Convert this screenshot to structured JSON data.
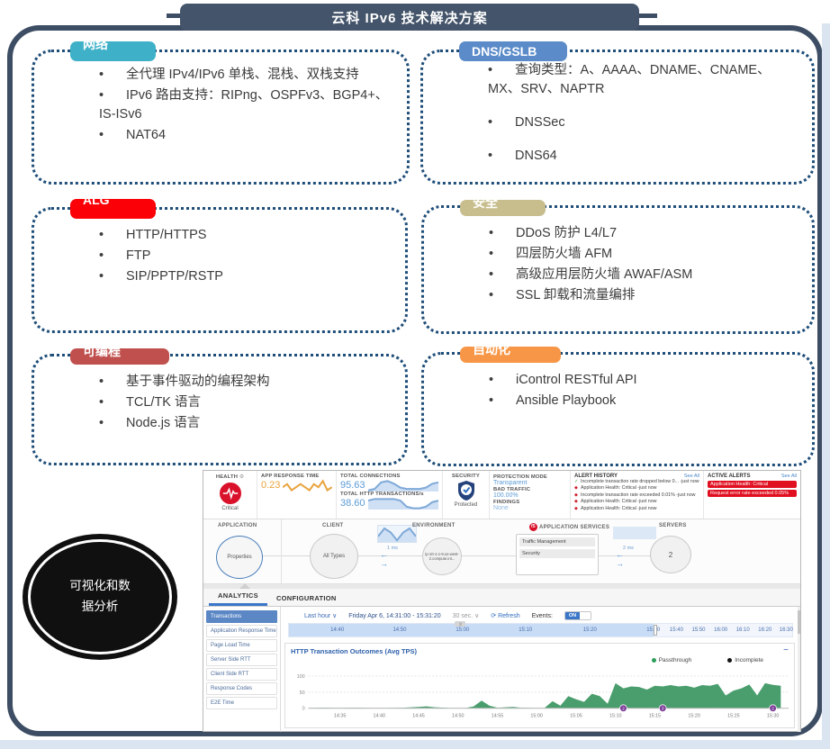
{
  "slide": {
    "title": "云科 IPv6 技术解决方案",
    "boxes": [
      {
        "label": "网络",
        "color": "#3eb1c8",
        "items": [
          "全代理 IPv4/IPv6 单栈、混栈、双栈支持",
          "IPv6 路由支持：RIPng、OSPFv3、BGP4+、IS-ISv6",
          "NAT64"
        ]
      },
      {
        "label": "DNS/GSLB",
        "color": "#5b8bc9",
        "items": [
          "查询类型：A、AAAA、DNAME、CNAME、MX、SRV、NAPTR",
          "DNSSec",
          "DNS64"
        ]
      },
      {
        "label": "ALG",
        "color": "#fb0007",
        "items": [
          "HTTP/HTTPS",
          "FTP",
          "SIP/PPTP/RSTP"
        ]
      },
      {
        "label": "安全",
        "color": "#c7bd8d",
        "items": [
          "DDoS 防护 L4/L7",
          "四层防火墙 AFM",
          "高级应用层防火墙 AWAF/ASM",
          "SSL 卸载和流量编排"
        ]
      },
      {
        "label": "可编程",
        "color": "#c0504d",
        "items": [
          "基于事件驱动的编程架构",
          "TCL/TK 语言",
          "Node.js 语言"
        ]
      },
      {
        "label": "自动化",
        "color": "#f79646",
        "items": [
          "iControl RESTful API",
          "Ansible Playbook"
        ]
      }
    ],
    "oval_label": "可视化和数据分析"
  },
  "dashboard": {
    "health": {
      "label": "HEALTH",
      "status": "Critical"
    },
    "app_response_time": {
      "label": "APP RESPONSE TIME",
      "value": "0.23"
    },
    "total_connections": {
      "label": "TOTAL CONNECTIONS",
      "value": "95.63"
    },
    "total_http": {
      "label": "TOTAL HTTP TRANSACTIONS/s",
      "value": "38.60"
    },
    "security": {
      "label": "SECURITY",
      "status": "Protected"
    },
    "protection": {
      "mode_label": "PROTECTION MODE",
      "mode": "Transparent",
      "bad_label": "BAD TRAFFIC",
      "bad": "100.00%",
      "findings_label": "FINDINGS",
      "findings": "None"
    },
    "alert_history": {
      "title": "ALERT HISTORY",
      "see_all": "See All",
      "items": [
        {
          "icon": "ok",
          "text": "Incomplete transaction rate dropped below 0... -just now"
        },
        {
          "icon": "crit",
          "text": "Application Health: Critical -just now"
        },
        {
          "icon": "crit",
          "text": "Incomplete transaction rate exceeded 0.01% -just now"
        },
        {
          "icon": "crit",
          "text": "Application Health: Critical -just now"
        },
        {
          "icon": "crit",
          "text": "Application Health: Critical -just now"
        }
      ]
    },
    "active_alerts": {
      "title": "ACTIVE ALERTS",
      "see_all": "See All",
      "items": [
        {
          "text": "Application Health: Critical"
        },
        {
          "text": "Request error rate exceeded 0.05%"
        }
      ]
    },
    "topology": {
      "application_label": "APPLICATION",
      "application_node": "Properties",
      "client_label": "CLIENT",
      "client_node": "All Types",
      "latency1": "1 ms",
      "environment_label": "ENVIRONMENT",
      "environment_node": "ip-10-1-1-9.us-west-2.compute.int...",
      "services_label": "APPLICATION SERVICES",
      "services_icon": "f5",
      "services": [
        "Traffic Management",
        "Security"
      ],
      "latency2": "2 ms",
      "servers_label": "SERVERS",
      "servers_node": "2"
    },
    "tabs": {
      "analytics": "ANALYTICS",
      "configuration": "CONFIGURATION"
    },
    "sidebar": [
      {
        "label": "Transactions",
        "active": true
      },
      {
        "label": "Application Response Time"
      },
      {
        "label": "Page Load Time"
      },
      {
        "label": "Server Side RTT"
      },
      {
        "label": "Client Side RTT"
      },
      {
        "label": "Response Codes"
      },
      {
        "label": "E2E Time"
      }
    ],
    "time_controls": {
      "range": "Last hour ∨",
      "date": "Friday Apr 6, 14:31:00 - 15:31:20",
      "interval": "30 sec. ∨",
      "refresh": "⟳ Refresh",
      "events_label": "Events:",
      "events_state": "ON"
    },
    "timeline_ticks": [
      {
        "label": "14:40",
        "pos": 9.6
      },
      {
        "label": "14:50",
        "pos": 22.0
      },
      {
        "label": "15:00",
        "pos": 34.5
      },
      {
        "label": "15:10",
        "pos": 47.0
      },
      {
        "label": "15:20",
        "pos": 59.8
      },
      {
        "label": "15:30",
        "pos": 72.4
      },
      {
        "label": "15:40",
        "pos": 77.0
      },
      {
        "label": "15:50",
        "pos": 81.4
      },
      {
        "label": "16:00",
        "pos": 85.8
      },
      {
        "label": "16:10",
        "pos": 90.2
      },
      {
        "label": "16:20",
        "pos": 94.6
      },
      {
        "label": "16:30",
        "pos": 98.8
      }
    ],
    "sparklines": {
      "app_rt": [
        4,
        5,
        3,
        4,
        5,
        4,
        3,
        5,
        4,
        6,
        3,
        4
      ],
      "total_conn": [
        2,
        3,
        8,
        9,
        7,
        4,
        3,
        3,
        3,
        4,
        7,
        8
      ],
      "total_http": [
        6,
        7,
        7,
        7,
        7,
        6,
        2,
        1,
        1,
        2,
        5,
        6
      ],
      "client_env": [
        5,
        7,
        6,
        4,
        6,
        7,
        5
      ]
    },
    "spark_colors": {
      "orange": "#e8a33d",
      "blue": "#7fa9d8",
      "blue_fill": "#cfe0f5"
    }
  },
  "chart_data": {
    "type": "area",
    "title": "HTTP Transaction Outcomes (Avg TPS)",
    "legend": [
      {
        "name": "Passthrough",
        "color": "#2e9e5b"
      },
      {
        "name": "Incomplete",
        "color": "#111111"
      }
    ],
    "x_range": [
      "14:31",
      "15:32"
    ],
    "ylim": [
      0,
      110
    ],
    "y_ticks": [
      0,
      50,
      100
    ],
    "x_ticks": [
      "14:35",
      "14:40",
      "14:45",
      "14:50",
      "14:55",
      "15:00",
      "15:05",
      "15:10",
      "15:15",
      "15:20",
      "15:25",
      "15:30"
    ],
    "grid": true,
    "legend_position": "top-right",
    "series": [
      {
        "name": "Passthrough",
        "color": "#4a9e6e",
        "x": [
          "14:31",
          "14:33",
          "14:35",
          "14:37",
          "14:39",
          "14:41",
          "14:43",
          "14:45",
          "14:46",
          "14:47",
          "14:49",
          "14:51",
          "14:52",
          "14:53",
          "14:54",
          "14:55",
          "14:57",
          "14:58",
          "15:00",
          "15:01",
          "15:02",
          "15:03",
          "15:04",
          "15:05",
          "15:06",
          "15:07",
          "15:08",
          "15:09",
          "15:10",
          "15:11",
          "15:12",
          "15:13",
          "15:14",
          "15:15",
          "15:16",
          "15:17",
          "15:18",
          "15:19",
          "15:20",
          "15:21",
          "15:22",
          "15:23",
          "15:24",
          "15:25",
          "15:26",
          "15:27",
          "15:28",
          "15:29",
          "15:30",
          "15:31"
        ],
        "values": [
          1,
          2,
          1,
          2,
          1,
          1,
          2,
          4,
          6,
          3,
          1,
          1,
          6,
          24,
          8,
          2,
          4,
          2,
          1,
          1,
          22,
          8,
          38,
          28,
          20,
          45,
          38,
          14,
          78,
          62,
          68,
          66,
          58,
          70,
          68,
          72,
          68,
          70,
          64,
          72,
          70,
          76,
          40,
          55,
          62,
          74,
          40,
          78,
          73,
          70
        ]
      }
    ],
    "events": [
      {
        "x": "15:11",
        "label": "2"
      },
      {
        "x": "15:16",
        "label": "3"
      },
      {
        "x": "15:30",
        "label": "2"
      }
    ]
  }
}
